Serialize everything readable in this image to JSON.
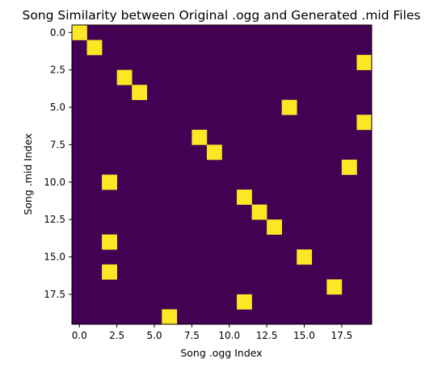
{
  "chart_data": {
    "type": "heatmap",
    "title": "Song Similarity between Original .ogg and Generated .mid Files",
    "xlabel": "Song .ogg Index",
    "ylabel": "Song .mid Index",
    "cols": 20,
    "rows": 20,
    "xlim": [
      -0.5,
      19.5
    ],
    "ylim": [
      19.5,
      -0.5
    ],
    "x_ticks": [
      0.0,
      2.5,
      5.0,
      7.5,
      10.0,
      12.5,
      15.0,
      17.5
    ],
    "x_tick_labels": [
      "0.0",
      "2.5",
      "5.0",
      "7.5",
      "10.0",
      "12.5",
      "15.0",
      "17.5"
    ],
    "y_ticks": [
      0.0,
      2.5,
      5.0,
      7.5,
      10.0,
      12.5,
      15.0,
      17.5
    ],
    "y_tick_labels": [
      "0.0",
      "2.5",
      "5.0",
      "7.5",
      "10.0",
      "12.5",
      "15.0",
      "17.5"
    ],
    "background_value": 0,
    "highlighted_value": 1,
    "highlighted_cells": [
      {
        "row": 0,
        "col": 0
      },
      {
        "row": 1,
        "col": 1
      },
      {
        "row": 2,
        "col": 19
      },
      {
        "row": 3,
        "col": 3
      },
      {
        "row": 4,
        "col": 4
      },
      {
        "row": 5,
        "col": 14
      },
      {
        "row": 6,
        "col": 19
      },
      {
        "row": 7,
        "col": 8
      },
      {
        "row": 8,
        "col": 9
      },
      {
        "row": 9,
        "col": 18
      },
      {
        "row": 10,
        "col": 2
      },
      {
        "row": 11,
        "col": 11
      },
      {
        "row": 12,
        "col": 12
      },
      {
        "row": 13,
        "col": 13
      },
      {
        "row": 14,
        "col": 2
      },
      {
        "row": 15,
        "col": 15
      },
      {
        "row": 16,
        "col": 2
      },
      {
        "row": 17,
        "col": 17
      },
      {
        "row": 18,
        "col": 11
      },
      {
        "row": 19,
        "col": 6
      }
    ],
    "colormap": "viridis",
    "colors": {
      "low": "#440154",
      "high": "#fde725"
    },
    "grid": false,
    "legend": "none"
  }
}
